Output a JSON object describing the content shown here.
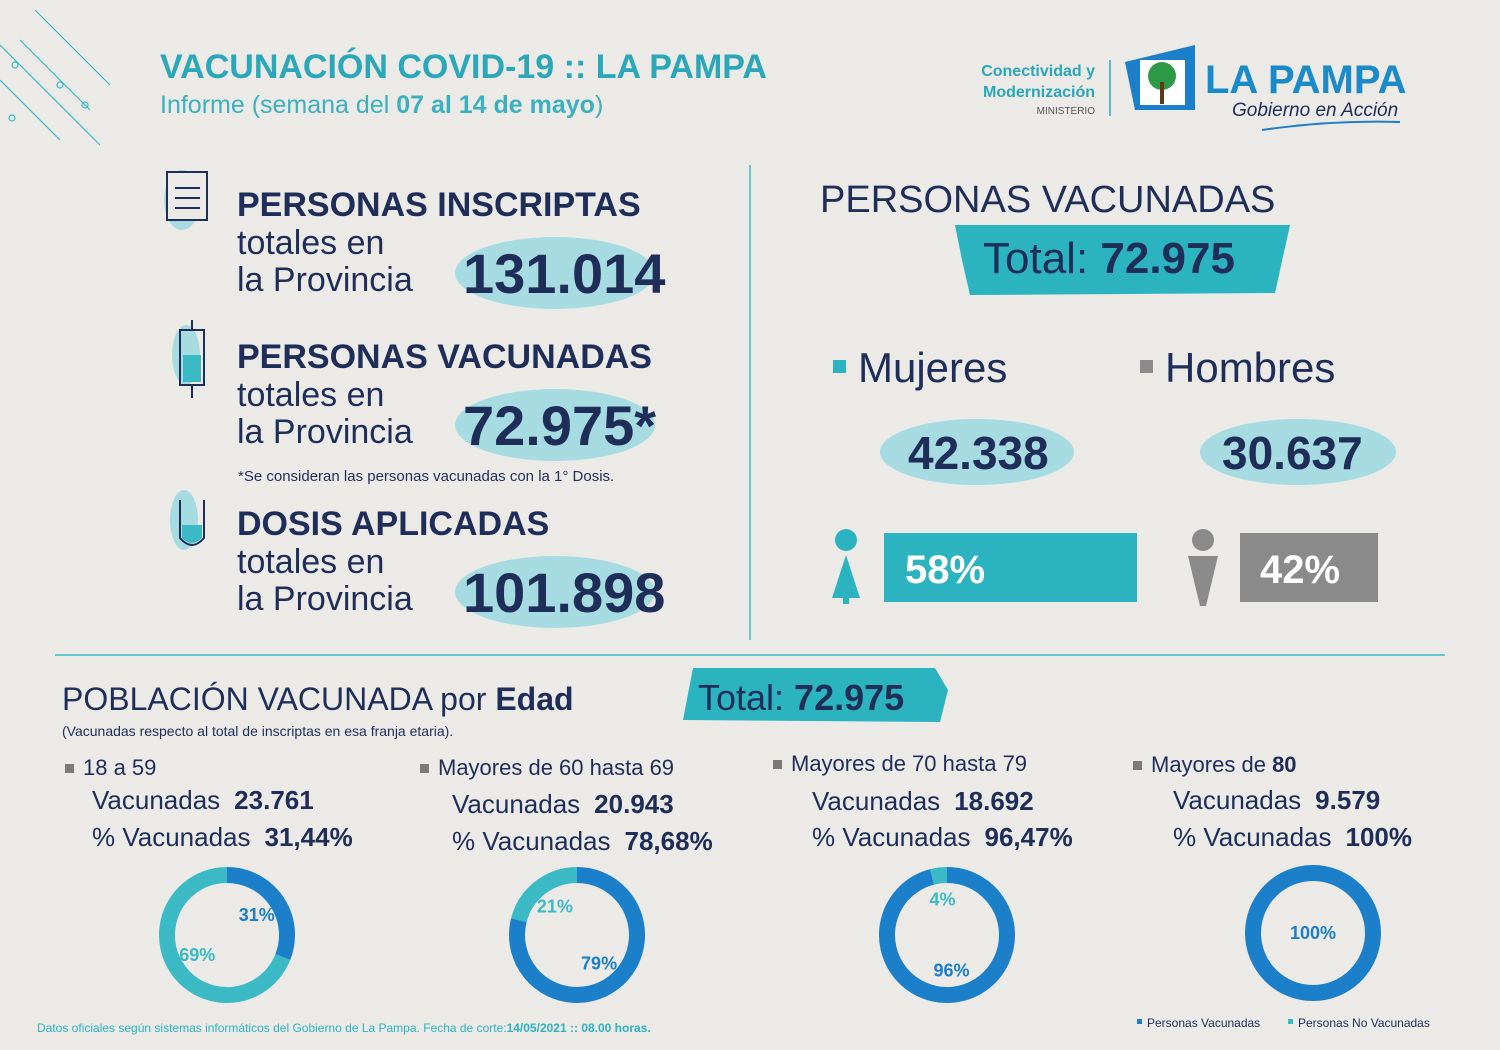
{
  "header": {
    "title": "VACUNACIÓN COVID-19 :: LA PAMPA",
    "subtitle_prefix": "Informe (semana del ",
    "subtitle_dates": "07 al 14 de mayo",
    "subtitle_suffix": ")"
  },
  "logo": {
    "ministry_line1": "Conectividad y",
    "ministry_line2": "Modernización",
    "ministry_label": "MINISTERIO",
    "brand": "LA PAMPA",
    "tagline": "Gobierno en Acción"
  },
  "stats": [
    {
      "title": "PERSONAS INSCRIPTAS",
      "line1": "totales en",
      "line2": "la Provincia",
      "value": "131.014"
    },
    {
      "title": "PERSONAS VACUNADAS",
      "line1": "totales en",
      "line2": "la Provincia",
      "value": "72.975*",
      "note": "*Se consideran las personas vacunadas con la 1° Dosis."
    },
    {
      "title": "DOSIS APLICADAS",
      "line1": "totales en",
      "line2": "la Provincia",
      "value": "101.898"
    }
  ],
  "vaccinated": {
    "title": "PERSONAS VACUNADAS",
    "total_label": "Total: ",
    "total": "72.975",
    "women": {
      "label": "Mujeres",
      "count": "42.338",
      "share": "58%"
    },
    "men": {
      "label": "Hombres",
      "count": "30.637",
      "share": "42%"
    }
  },
  "age": {
    "title_prefix": "POBLACIÓN VACUNADA por ",
    "title_bold": "Edad",
    "total_label": "Total: ",
    "total": "72.975",
    "note": "(Vacunadas respecto al total de inscriptas en esa franja etaria).",
    "groups": [
      {
        "label": "18 a 59",
        "vacunadas_label": "Vacunadas",
        "vacunadas": "23.761",
        "pct_label": "% Vacunadas",
        "pct": "31,44%"
      },
      {
        "label": "Mayores de 60 hasta 69",
        "vacunadas_label": "Vacunadas",
        "vacunadas": "20.943",
        "pct_label": "% Vacunadas",
        "pct": "78,68%"
      },
      {
        "label": "Mayores de 70 hasta 79",
        "vacunadas_label": "Vacunadas",
        "vacunadas": "18.692",
        "pct_label": "% Vacunadas",
        "pct": "96,47%"
      },
      {
        "label": "Mayores de ",
        "label_bold": "80",
        "vacunadas_label": "Vacunadas",
        "vacunadas": "9.579",
        "pct_label": "% Vacunadas",
        "pct": "100%"
      }
    ]
  },
  "legend": [
    {
      "name": "Personas Vacunadas",
      "color": "#1b7fc9"
    },
    {
      "name": "Personas No Vacunadas",
      "color": "#3bb9c5"
    }
  ],
  "footer": {
    "text": "Datos oficiales según sistemas informáticos del Gobierno de La Pampa. Fecha de corte:",
    "date": "14/05/2021 :: 08.00 horas."
  },
  "chart_data": [
    {
      "type": "pie",
      "values": [
        31,
        69
      ],
      "value_labels": [
        "31%",
        "69%"
      ]
    },
    {
      "type": "pie",
      "values": [
        79,
        21
      ],
      "value_labels": [
        "79%",
        "21%"
      ]
    },
    {
      "type": "pie",
      "values": [
        96,
        4
      ],
      "value_labels": [
        "96%",
        "4%"
      ]
    },
    {
      "type": "pie",
      "values": [
        100
      ],
      "value_labels": [
        "100%"
      ]
    }
  ]
}
